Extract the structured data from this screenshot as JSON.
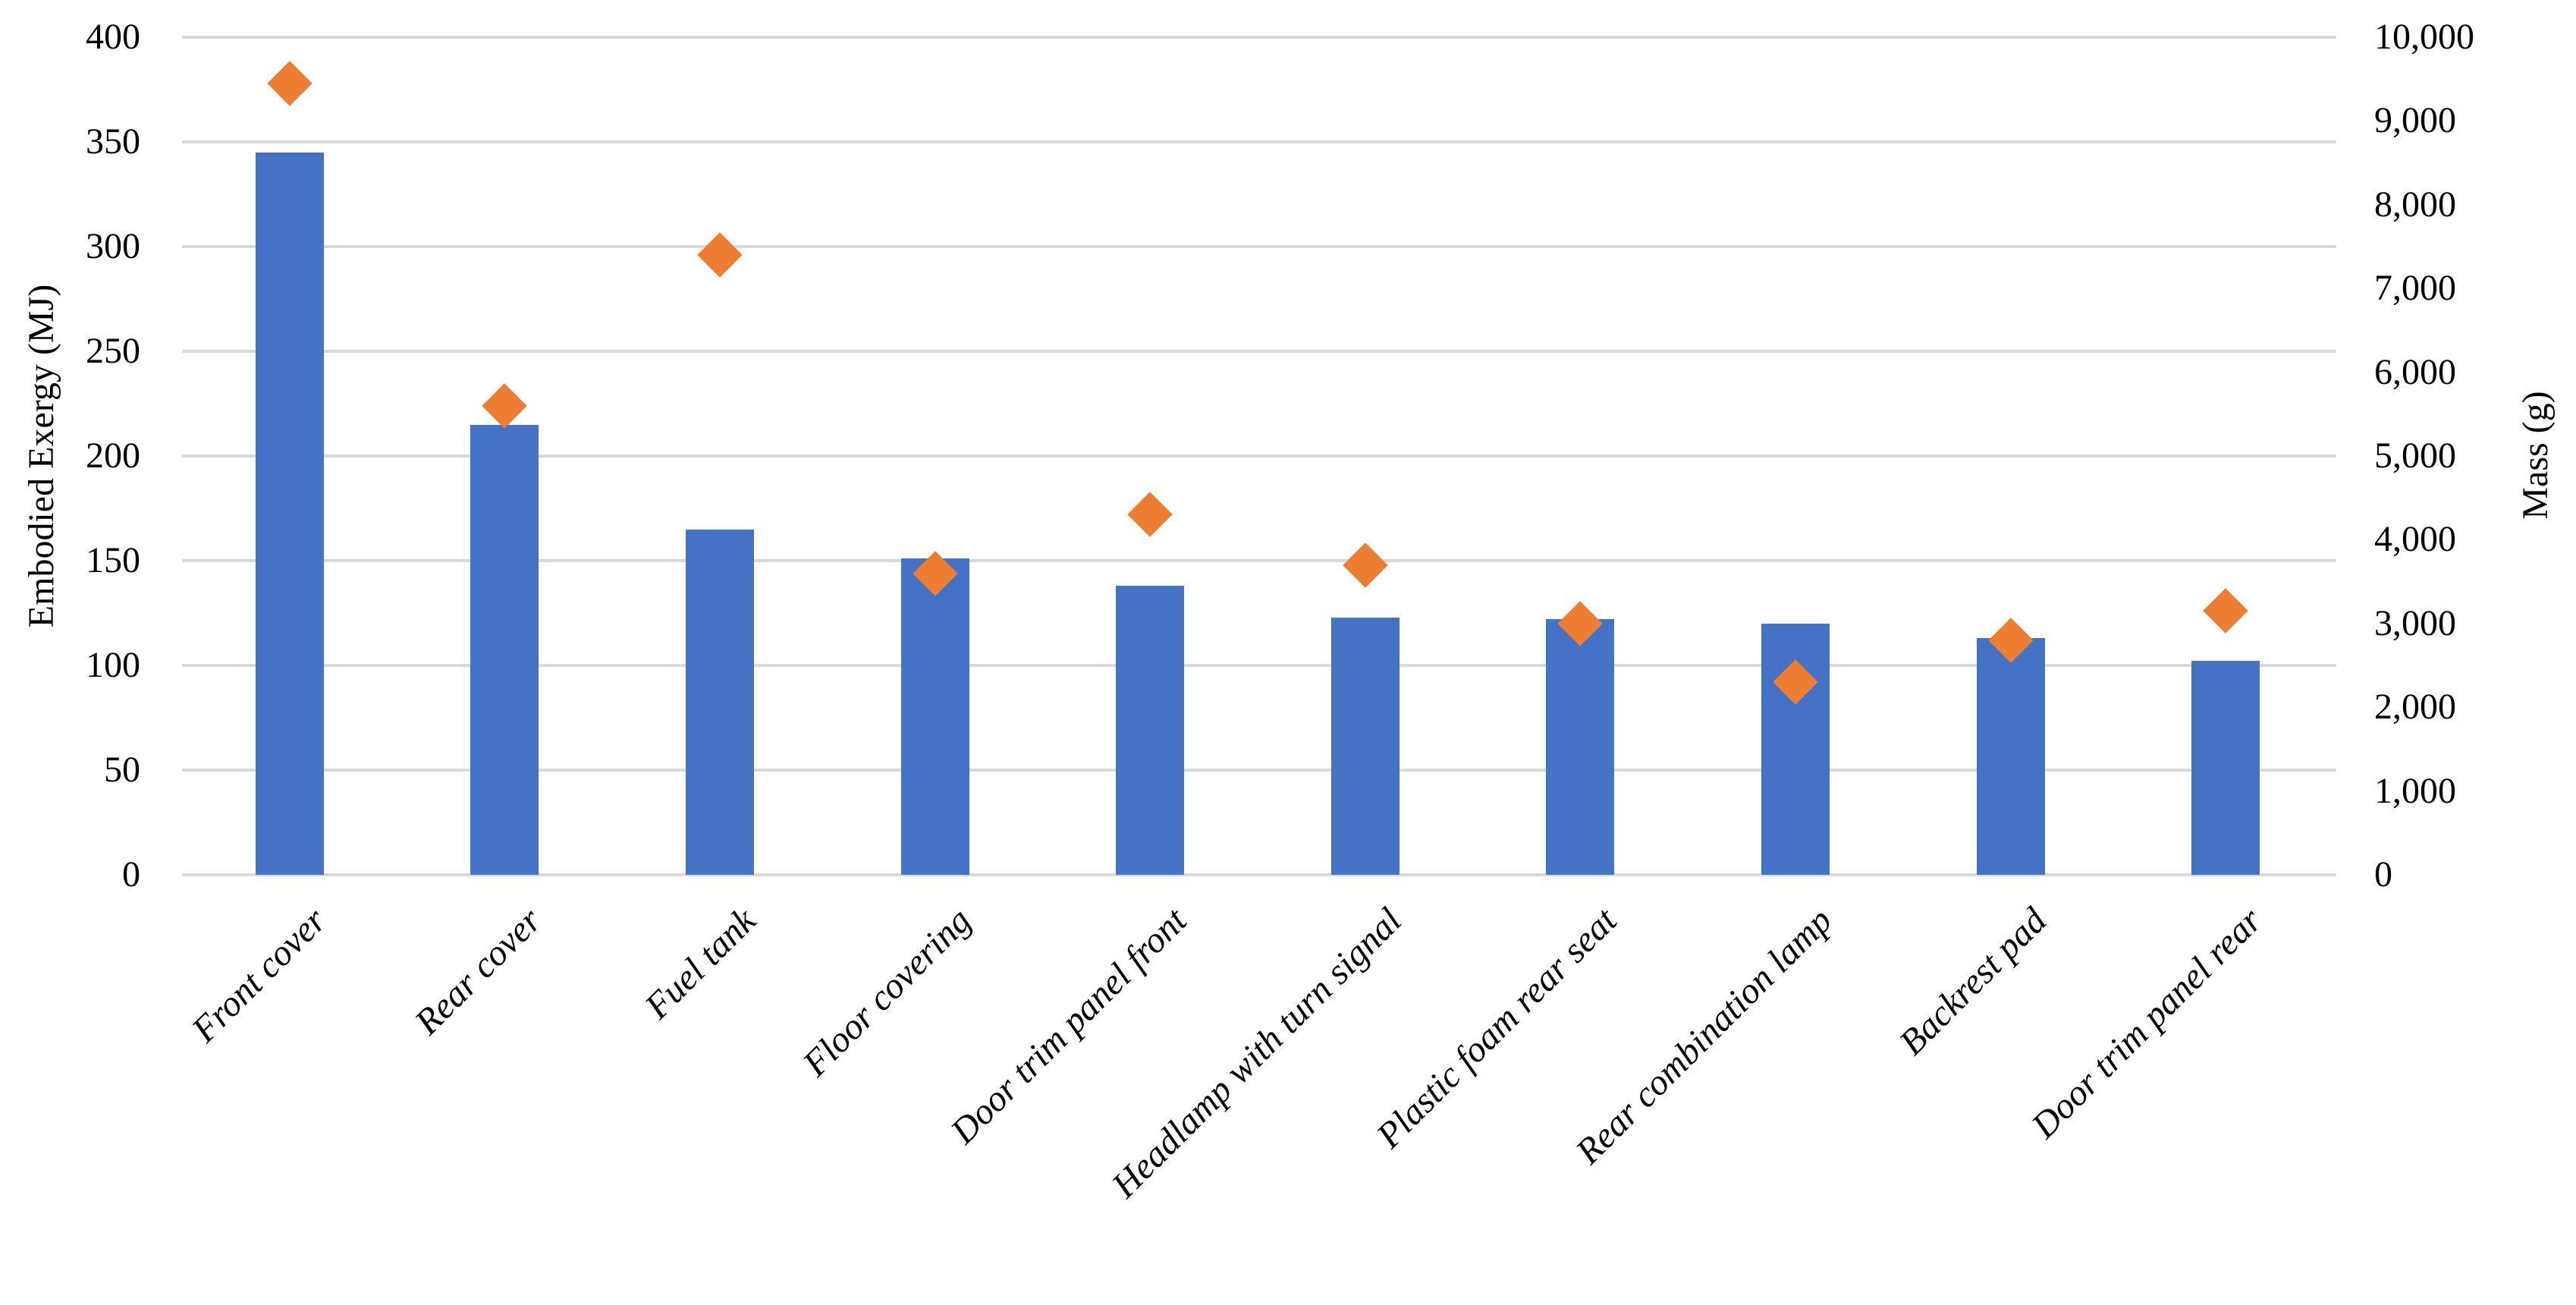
{
  "chart_data": {
    "type": "bar",
    "subtype": "combo-bar-and-scatter-dual-axis",
    "title": "",
    "legend": "none",
    "grid": "horizontal gridlines at left-axis ticks, light gray",
    "categories": [
      "Front cover",
      "Rear cover",
      "Fuel tank",
      "Floor covering",
      "Door trim panel front",
      "Headlamp with turn signal",
      "Plastic foam rear seat",
      "Rear combination lamp",
      "Backrest pad",
      "Door trim panel rear"
    ],
    "series": [
      {
        "name": "Embodied Exergy",
        "type": "bar",
        "axis": "left",
        "color": "#4472c4",
        "values": [
          345,
          215,
          165,
          151,
          138,
          123,
          122,
          120,
          113,
          102
        ]
      },
      {
        "name": "Mass",
        "type": "scatter",
        "marker": "diamond",
        "axis": "right",
        "color": "#ed7d31",
        "values": [
          9450,
          5600,
          7400,
          3600,
          4300,
          3700,
          3000,
          2300,
          2800,
          3150
        ]
      }
    ],
    "left_axis": {
      "label": "Embodied Exergy (MJ)",
      "min": 0,
      "max": 400,
      "step": 50,
      "tick_labels": [
        "0",
        "50",
        "100",
        "150",
        "200",
        "250",
        "300",
        "350",
        "400"
      ]
    },
    "right_axis": {
      "label": "Mass (g)",
      "min": 0,
      "max": 10000,
      "step": 1000,
      "tick_labels": [
        "0",
        "1,000",
        "2,000",
        "3,000",
        "4,000",
        "5,000",
        "6,000",
        "7,000",
        "8,000",
        "9,000",
        "10,000"
      ]
    },
    "colors": {
      "bar": "#4472c4",
      "marker": "#ed7d31",
      "gridline": "#d9d9d9",
      "text": "#000000",
      "background": "#ffffff"
    }
  }
}
